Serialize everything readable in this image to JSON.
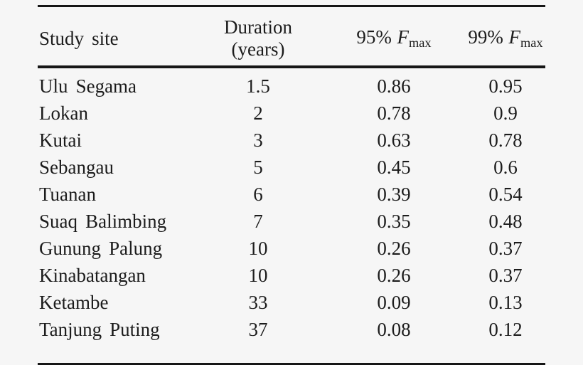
{
  "colors": {
    "background": "#f6f6f6",
    "text": "#1c1c1c",
    "rule": "#161616"
  },
  "table": {
    "header": {
      "site": "Study site",
      "duration": "Duration (years)",
      "f95": {
        "prefix": "95%",
        "symbol": "F",
        "subscript": "max"
      },
      "f99": {
        "prefix": "99%",
        "symbol": "F",
        "subscript": "max"
      }
    },
    "rows": [
      {
        "site": "Ulu Segama",
        "duration": "1.5",
        "f95": "0.86",
        "f99": "0.95"
      },
      {
        "site": "Lokan",
        "duration": "2",
        "f95": "0.78",
        "f99": "0.9"
      },
      {
        "site": "Kutai",
        "duration": "3",
        "f95": "0.63",
        "f99": "0.78"
      },
      {
        "site": "Sebangau",
        "duration": "5",
        "f95": "0.45",
        "f99": "0.6"
      },
      {
        "site": "Tuanan",
        "duration": "6",
        "f95": "0.39",
        "f99": "0.54"
      },
      {
        "site": "Suaq Balimbing",
        "duration": "7",
        "f95": "0.35",
        "f99": "0.48"
      },
      {
        "site": "Gunung Palung",
        "duration": "10",
        "f95": "0.26",
        "f99": "0.37"
      },
      {
        "site": "Kinabatangan",
        "duration": "10",
        "f95": "0.26",
        "f99": "0.37"
      },
      {
        "site": "Ketambe",
        "duration": "33",
        "f95": "0.09",
        "f99": "0.13"
      },
      {
        "site": "Tanjung Puting",
        "duration": "37",
        "f95": "0.08",
        "f99": "0.12"
      }
    ]
  }
}
